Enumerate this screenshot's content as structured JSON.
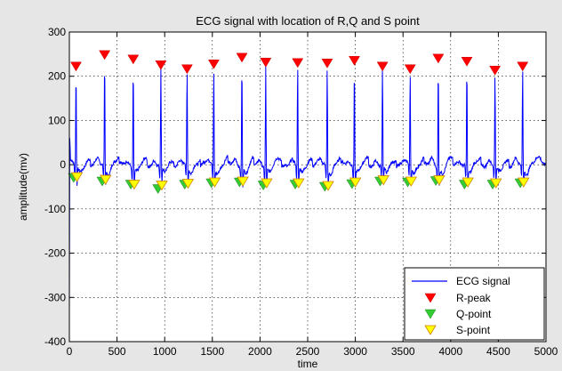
{
  "chart_data": {
    "type": "line",
    "title": "ECG signal with location of R,Q and S point",
    "xlabel": "time",
    "ylabel": "amplitude(mv)",
    "xlim": [
      0,
      5000
    ],
    "ylim": [
      -400,
      300
    ],
    "xticks": [
      0,
      500,
      1000,
      1500,
      2000,
      2500,
      3000,
      3500,
      4000,
      4500,
      5000
    ],
    "yticks": [
      -400,
      -300,
      -200,
      -100,
      0,
      100,
      200,
      300
    ],
    "grid": true,
    "legend_position": "bottom-right",
    "series": [
      {
        "name": "ECG signal",
        "kind": "line",
        "color": "#0000ff",
        "r_peaks_x": [
          70,
          370,
          670,
          960,
          1235,
          1515,
          1810,
          2060,
          2395,
          2705,
          2990,
          3285,
          3575,
          3870,
          4170,
          4465,
          4755
        ],
        "r_peaks_y": [
          220,
          247,
          237,
          224,
          215,
          226,
          241,
          230,
          229,
          228,
          234,
          221,
          215,
          239,
          232,
          212,
          221
        ],
        "baseline": 0
      },
      {
        "name": "R-peak",
        "kind": "marker",
        "marker": "triangle-down",
        "color": "#ff0000",
        "x": [
          70,
          370,
          670,
          960,
          1235,
          1515,
          1810,
          2060,
          2395,
          2705,
          2990,
          3285,
          3575,
          3870,
          4170,
          4465,
          4755
        ],
        "y": [
          222,
          248,
          238,
          225,
          216,
          227,
          242,
          231,
          230,
          229,
          235,
          222,
          216,
          240,
          233,
          213,
          222
        ]
      },
      {
        "name": "Q-point",
        "kind": "marker",
        "marker": "triangle-down",
        "color": "#33cc33",
        "x": [
          45,
          345,
          645,
          930,
          1210,
          1490,
          1785,
          2035,
          2370,
          2680,
          2965,
          3260,
          3550,
          3845,
          4145,
          4440,
          4730
        ],
        "y": [
          -30,
          -38,
          -45,
          -55,
          -45,
          -42,
          -40,
          -47,
          -45,
          -50,
          -44,
          -38,
          -40,
          -37,
          -45,
          -45,
          -42
        ]
      },
      {
        "name": "S-point",
        "kind": "marker",
        "marker": "triangle-down",
        "color": "#ffff00",
        "x": [
          80,
          380,
          680,
          970,
          1245,
          1525,
          1820,
          2070,
          2405,
          2715,
          3000,
          3295,
          3585,
          3880,
          4180,
          4475,
          4765
        ],
        "y": [
          -28,
          -34,
          -45,
          -47,
          -43,
          -40,
          -38,
          -42,
          -42,
          -48,
          -40,
          -35,
          -38,
          -35,
          -40,
          -42,
          -40
        ]
      }
    ]
  }
}
